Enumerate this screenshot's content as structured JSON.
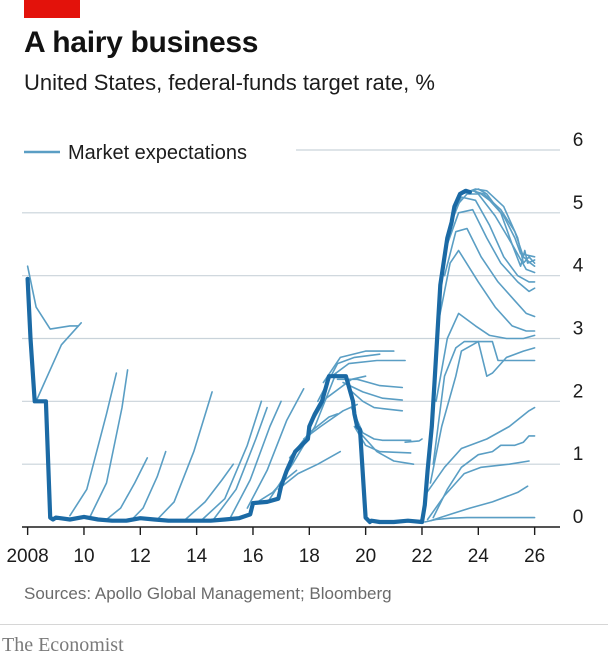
{
  "header": {
    "title": "A hairy business",
    "subtitle": "United States, federal-funds target rate, %"
  },
  "footer": {
    "source": "Sources: Apollo Global Management; Bloomberg",
    "brand": "The Economist"
  },
  "colors": {
    "brand_red": "#e3120b",
    "actual_line": "#1b6aa5",
    "expectation_lines": "#5a9ec4",
    "gridline": "#c9d3da",
    "axis": "#1c1c1c"
  },
  "chart_data": {
    "type": "line",
    "title": "A hairy business",
    "subtitle": "United States, federal-funds target rate, %",
    "xlim": [
      2007.8,
      2026.9
    ],
    "ylim": [
      0,
      6
    ],
    "y_axis_side": "right",
    "grid": true,
    "x_ticks": [
      2008,
      2010,
      2012,
      2014,
      2016,
      2018,
      2020,
      2022,
      2024,
      2026
    ],
    "x_tick_labels": [
      "2008",
      "10",
      "12",
      "14",
      "16",
      "18",
      "20",
      "22",
      "24",
      "26"
    ],
    "y_ticks": [
      0,
      1,
      2,
      3,
      4,
      5,
      6
    ],
    "y_tick_labels": [
      "0",
      "1",
      "2",
      "3",
      "4",
      "5",
      "6"
    ],
    "legend": {
      "position": "top-left",
      "entries": [
        {
          "label": "Market expectations",
          "series": "expectations"
        }
      ]
    },
    "actual": {
      "x": [
        2008.0,
        2008.1,
        2008.25,
        2008.4,
        2008.5,
        2008.65,
        2008.8,
        2008.9,
        2009.0,
        2009.5,
        2010.0,
        2010.5,
        2011.0,
        2011.5,
        2012.0,
        2012.5,
        2013.0,
        2013.5,
        2014.0,
        2014.5,
        2015.0,
        2015.5,
        2015.9,
        2016.0,
        2016.5,
        2016.9,
        2017.0,
        2017.2,
        2017.45,
        2017.5,
        2017.95,
        2018.0,
        2018.2,
        2018.45,
        2018.7,
        2018.95,
        2019.3,
        2019.55,
        2019.6,
        2019.7,
        2019.8,
        2020.0,
        2020.15,
        2020.2,
        2020.5,
        2021.0,
        2021.5,
        2022.0,
        2022.1,
        2022.2,
        2022.35,
        2022.45,
        2022.55,
        2022.65,
        2022.8,
        2022.9,
        2023.05,
        2023.15,
        2023.35,
        2023.55,
        2023.7
      ],
      "y": [
        3.95,
        3.0,
        2.0,
        2.0,
        2.0,
        2.0,
        0.15,
        0.12,
        0.15,
        0.12,
        0.16,
        0.12,
        0.1,
        0.1,
        0.14,
        0.12,
        0.1,
        0.1,
        0.1,
        0.1,
        0.12,
        0.14,
        0.2,
        0.38,
        0.4,
        0.45,
        0.65,
        0.9,
        1.15,
        1.2,
        1.4,
        1.6,
        1.8,
        2.0,
        2.4,
        2.4,
        2.4,
        2.0,
        1.8,
        1.6,
        1.55,
        0.15,
        0.08,
        0.1,
        0.08,
        0.08,
        0.1,
        0.08,
        0.35,
        0.9,
        1.6,
        2.35,
        3.1,
        3.85,
        4.3,
        4.6,
        4.85,
        5.1,
        5.3,
        5.35,
        5.33
      ]
    },
    "expectations": [
      {
        "x": [
          2008.0,
          2008.3,
          2008.8,
          2009.5,
          2009.8
        ],
        "y": [
          4.15,
          3.5,
          3.15,
          3.2,
          3.2
        ]
      },
      {
        "x": [
          2008.3,
          2008.6,
          2009.2,
          2009.9
        ],
        "y": [
          2.0,
          2.3,
          2.9,
          3.25
        ]
      },
      {
        "x": [
          2009.5,
          2010.1,
          2010.8,
          2011.15
        ],
        "y": [
          0.18,
          0.6,
          1.8,
          2.45
        ]
      },
      {
        "x": [
          2010.2,
          2010.8,
          2011.35,
          2011.55
        ],
        "y": [
          0.15,
          0.7,
          1.9,
          2.5
        ]
      },
      {
        "x": [
          2010.8,
          2011.3,
          2011.8,
          2012.25
        ],
        "y": [
          0.12,
          0.3,
          0.7,
          1.1
        ]
      },
      {
        "x": [
          2011.7,
          2012.1,
          2012.6,
          2012.9
        ],
        "y": [
          0.12,
          0.3,
          0.8,
          1.2
        ]
      },
      {
        "x": [
          2012.6,
          2013.2,
          2013.9,
          2014.55
        ],
        "y": [
          0.12,
          0.4,
          1.2,
          2.15
        ]
      },
      {
        "x": [
          2013.6,
          2014.3,
          2014.9,
          2015.3
        ],
        "y": [
          0.12,
          0.4,
          0.75,
          1.0
        ]
      },
      {
        "x": [
          2014.2,
          2015.0,
          2015.8,
          2016.3
        ],
        "y": [
          0.12,
          0.45,
          1.3,
          2.0
        ]
      },
      {
        "x": [
          2014.6,
          2015.4,
          2016.1,
          2016.5
        ],
        "y": [
          0.12,
          0.6,
          1.4,
          1.9
        ]
      },
      {
        "x": [
          2015.2,
          2015.9,
          2016.6,
          2017.0
        ],
        "y": [
          0.15,
          0.75,
          1.6,
          2.0
        ]
      },
      {
        "x": [
          2015.8,
          2016.5,
          2017.2,
          2017.8
        ],
        "y": [
          0.3,
          0.9,
          1.7,
          2.2
        ]
      },
      {
        "x": [
          2016.1,
          2016.7,
          2017.0,
          2017.55
        ],
        "y": [
          0.38,
          0.55,
          0.7,
          0.9
        ]
      },
      {
        "x": [
          2016.6,
          2017.4,
          2018.2,
          2018.95
        ],
        "y": [
          0.45,
          1.0,
          1.6,
          2.45
        ]
      },
      {
        "x": [
          2016.9,
          2017.6,
          2018.3,
          2019.1
        ],
        "y": [
          0.6,
          0.85,
          1.0,
          1.2
        ]
      },
      {
        "x": [
          2017.3,
          2018.0,
          2018.7,
          2019.0
        ],
        "y": [
          1.1,
          1.5,
          1.75,
          1.8
        ]
      },
      {
        "x": [
          2017.8,
          2018.4,
          2019.2,
          2019.7
        ],
        "y": [
          1.4,
          1.6,
          1.85,
          1.95
        ]
      },
      {
        "x": [
          2018.0,
          2018.6,
          2019.5,
          2020.0
        ],
        "y": [
          1.6,
          2.05,
          2.35,
          2.4
        ]
      },
      {
        "x": [
          2018.3,
          2019.0,
          2019.6,
          2020.5
        ],
        "y": [
          2.0,
          2.6,
          2.7,
          2.75
        ]
      },
      {
        "x": [
          2018.5,
          2019.1,
          2020.0,
          2021.0
        ],
        "y": [
          2.3,
          2.7,
          2.8,
          2.8
        ]
      },
      {
        "x": [
          2018.8,
          2019.4,
          2020.4,
          2021.4
        ],
        "y": [
          2.4,
          2.6,
          2.65,
          2.65
        ]
      },
      {
        "x": [
          2019.0,
          2019.7,
          2020.5,
          2021.3
        ],
        "y": [
          2.35,
          2.35,
          2.25,
          2.22
        ]
      },
      {
        "x": [
          2019.2,
          2019.9,
          2020.6,
          2021.3
        ],
        "y": [
          2.3,
          2.15,
          2.05,
          2.02
        ]
      },
      {
        "x": [
          2019.4,
          2019.9,
          2020.3,
          2021.3
        ],
        "y": [
          2.2,
          2.0,
          1.9,
          1.85
        ]
      },
      {
        "x": [
          2019.5,
          2019.9,
          2020.3,
          2020.6,
          2021.6
        ],
        "y": [
          1.9,
          1.5,
          1.4,
          1.38,
          1.38
        ]
      },
      {
        "x": [
          2019.6,
          2020.0,
          2020.5,
          2021.6
        ],
        "y": [
          1.6,
          1.3,
          1.2,
          1.18
        ]
      },
      {
        "x": [
          2021.4,
          2021.9,
          2022.0
        ],
        "y": [
          1.35,
          1.37,
          1.4
        ]
      },
      {
        "x": [
          2019.8,
          2020.4,
          2021.0,
          2021.7
        ],
        "y": [
          1.5,
          1.2,
          1.05,
          1.0
        ]
      },
      {
        "x": [
          2022.1,
          2022.5,
          2023.0,
          2023.6,
          2024.4,
          2025.5,
          2026.0
        ],
        "y": [
          0.08,
          0.12,
          0.14,
          0.15,
          0.15,
          0.15,
          0.15
        ]
      },
      {
        "x": [
          2022.3,
          2023.0,
          2023.7,
          2024.5,
          2025.4,
          2025.75
        ],
        "y": [
          0.1,
          0.2,
          0.3,
          0.4,
          0.55,
          0.65
        ]
      },
      {
        "x": [
          2022.2,
          2022.8,
          2023.5,
          2024.1,
          2025.1,
          2025.8
        ],
        "y": [
          0.12,
          0.5,
          0.85,
          0.95,
          1.0,
          1.05
        ]
      },
      {
        "x": [
          2022.4,
          2022.9,
          2023.4,
          2024.0,
          2024.5,
          2024.8,
          2025.3,
          2025.6,
          2025.8,
          2026.0
        ],
        "y": [
          0.15,
          0.6,
          0.95,
          1.15,
          1.2,
          1.3,
          1.3,
          1.35,
          1.45,
          1.45
        ]
      },
      {
        "x": [
          2022.1,
          2022.8,
          2023.4,
          2024.3,
          2025.1,
          2025.8,
          2026.0
        ],
        "y": [
          0.5,
          0.95,
          1.25,
          1.4,
          1.6,
          1.85,
          1.9
        ]
      },
      {
        "x": [
          2022.3,
          2022.7,
          2023.2,
          2023.4,
          2024.0,
          2024.5,
          2024.7,
          2025.4,
          2026.0
        ],
        "y": [
          0.7,
          1.6,
          2.4,
          2.8,
          2.95,
          2.95,
          2.65,
          2.65,
          2.65
        ]
      },
      {
        "x": [
          2022.4,
          2022.8,
          2023.2,
          2023.5,
          2024.0,
          2024.3,
          2024.5,
          2025.0,
          2025.6,
          2026.0
        ],
        "y": [
          1.0,
          2.4,
          2.85,
          2.95,
          2.95,
          2.4,
          2.45,
          2.7,
          2.8,
          2.85
        ]
      },
      {
        "x": [
          2022.5,
          2022.9,
          2023.3,
          2023.9,
          2024.4,
          2025.0,
          2025.6,
          2026.0
        ],
        "y": [
          2.0,
          3.0,
          3.4,
          3.2,
          3.05,
          3.0,
          3.0,
          3.05
        ]
      },
      {
        "x": [
          2022.6,
          2023.0,
          2023.3,
          2024.0,
          2024.6,
          2025.2,
          2025.7,
          2026.0
        ],
        "y": [
          3.3,
          4.2,
          4.4,
          3.9,
          3.5,
          3.2,
          3.12,
          3.12
        ]
      },
      {
        "x": [
          2022.8,
          2023.2,
          2023.6,
          2024.1,
          2024.7,
          2025.3,
          2025.7,
          2026.0
        ],
        "y": [
          4.0,
          4.7,
          4.75,
          4.3,
          3.9,
          3.6,
          3.4,
          3.35
        ]
      },
      {
        "x": [
          2022.9,
          2023.3,
          2023.8,
          2024.3,
          2024.8,
          2025.4,
          2025.8,
          2026.0
        ],
        "y": [
          4.5,
          5.0,
          5.05,
          4.6,
          4.2,
          3.9,
          3.75,
          3.8
        ]
      },
      {
        "x": [
          2023.0,
          2023.4,
          2023.9,
          2024.4,
          2024.9,
          2025.4,
          2025.8,
          2026.0
        ],
        "y": [
          4.8,
          5.25,
          5.2,
          4.8,
          4.3,
          4.0,
          3.9,
          3.9
        ]
      },
      {
        "x": [
          2023.2,
          2023.6,
          2024.0,
          2024.6,
          2025.2,
          2025.7,
          2026.0
        ],
        "y": [
          5.1,
          5.3,
          5.3,
          4.95,
          4.5,
          4.1,
          4.05
        ]
      },
      {
        "x": [
          2023.4,
          2023.8,
          2024.2,
          2024.8,
          2025.3,
          2025.6,
          2025.85,
          2026.0
        ],
        "y": [
          5.3,
          5.35,
          5.3,
          5.05,
          4.7,
          4.3,
          4.2,
          4.15
        ]
      },
      {
        "x": [
          2023.6,
          2023.9,
          2024.3,
          2024.9,
          2025.4,
          2025.6,
          2025.8,
          2026.0
        ],
        "y": [
          5.33,
          5.38,
          5.35,
          5.1,
          4.6,
          4.2,
          4.3,
          4.2
        ]
      },
      {
        "x": [
          2023.8,
          2024.0,
          2024.3,
          2024.8,
          2025.2,
          2025.5,
          2025.65,
          2025.75,
          2026.0
        ],
        "y": [
          5.35,
          5.38,
          5.3,
          5.0,
          4.5,
          4.15,
          4.4,
          4.2,
          4.25
        ]
      },
      {
        "x": [
          2023.9,
          2024.1,
          2024.4,
          2024.9,
          2025.3,
          2025.5,
          2026.0
        ],
        "y": [
          5.33,
          5.3,
          5.2,
          4.95,
          4.6,
          4.35,
          4.3
        ]
      }
    ]
  }
}
